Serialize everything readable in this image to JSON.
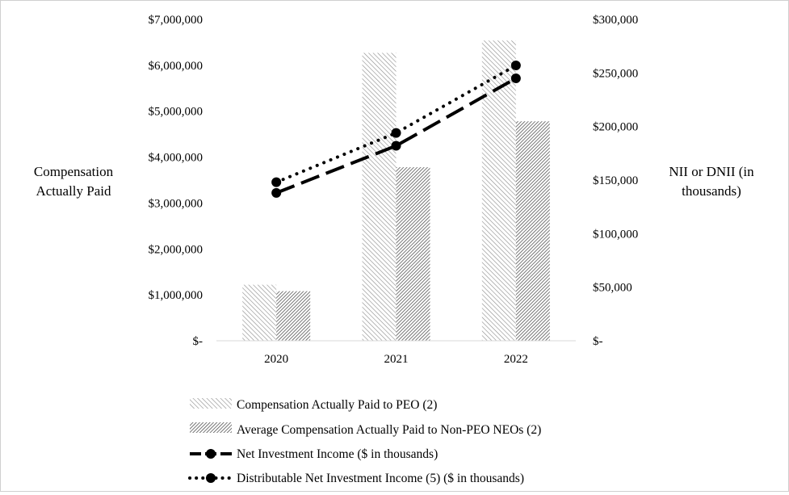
{
  "chart_data": {
    "type": "bar",
    "categories": [
      "2020",
      "2021",
      "2022"
    ],
    "left_axis": {
      "title_lines": [
        "Compensation",
        "Actually Paid"
      ],
      "ylim": [
        0,
        7000000
      ],
      "ticks": [
        0,
        1000000,
        2000000,
        3000000,
        4000000,
        5000000,
        6000000,
        7000000
      ],
      "tick_labels": [
        "$-",
        "$1,000,000",
        "$2,000,000",
        "$3,000,000",
        "$4,000,000",
        "$5,000,000",
        "$6,000,000",
        "$7,000,000"
      ]
    },
    "right_axis": {
      "title_lines": [
        "NII or DNII (in",
        "thousands)"
      ],
      "ylim": [
        0,
        300000
      ],
      "ticks": [
        0,
        50000,
        100000,
        150000,
        200000,
        250000,
        300000
      ],
      "tick_labels": [
        "$-",
        "$50,000",
        "$100,000",
        "$150,000",
        "$200,000",
        "$250,000",
        "$300,000"
      ]
    },
    "series": [
      {
        "name": "Compensation Actually Paid to PEO (2)",
        "kind": "bar",
        "axis": "left",
        "pattern": "light-hatch",
        "values": [
          1220000,
          6270000,
          6540000
        ]
      },
      {
        "name": "Average Compensation Actually Paid to Non-PEO NEOs (2)",
        "kind": "bar",
        "axis": "left",
        "pattern": "dense-hatch",
        "values": [
          1080000,
          3780000,
          4780000
        ]
      },
      {
        "name": "Net Investment Income ($ in thousands)",
        "kind": "line",
        "axis": "right",
        "style": "dashed",
        "values": [
          138000,
          182000,
          245000
        ]
      },
      {
        "name": "Distributable Net Investment Income (5) ($ in thousands)",
        "kind": "line",
        "axis": "right",
        "style": "dotted",
        "values": [
          148000,
          194000,
          257000
        ]
      }
    ],
    "legend_position": "bottom",
    "grid": false
  }
}
